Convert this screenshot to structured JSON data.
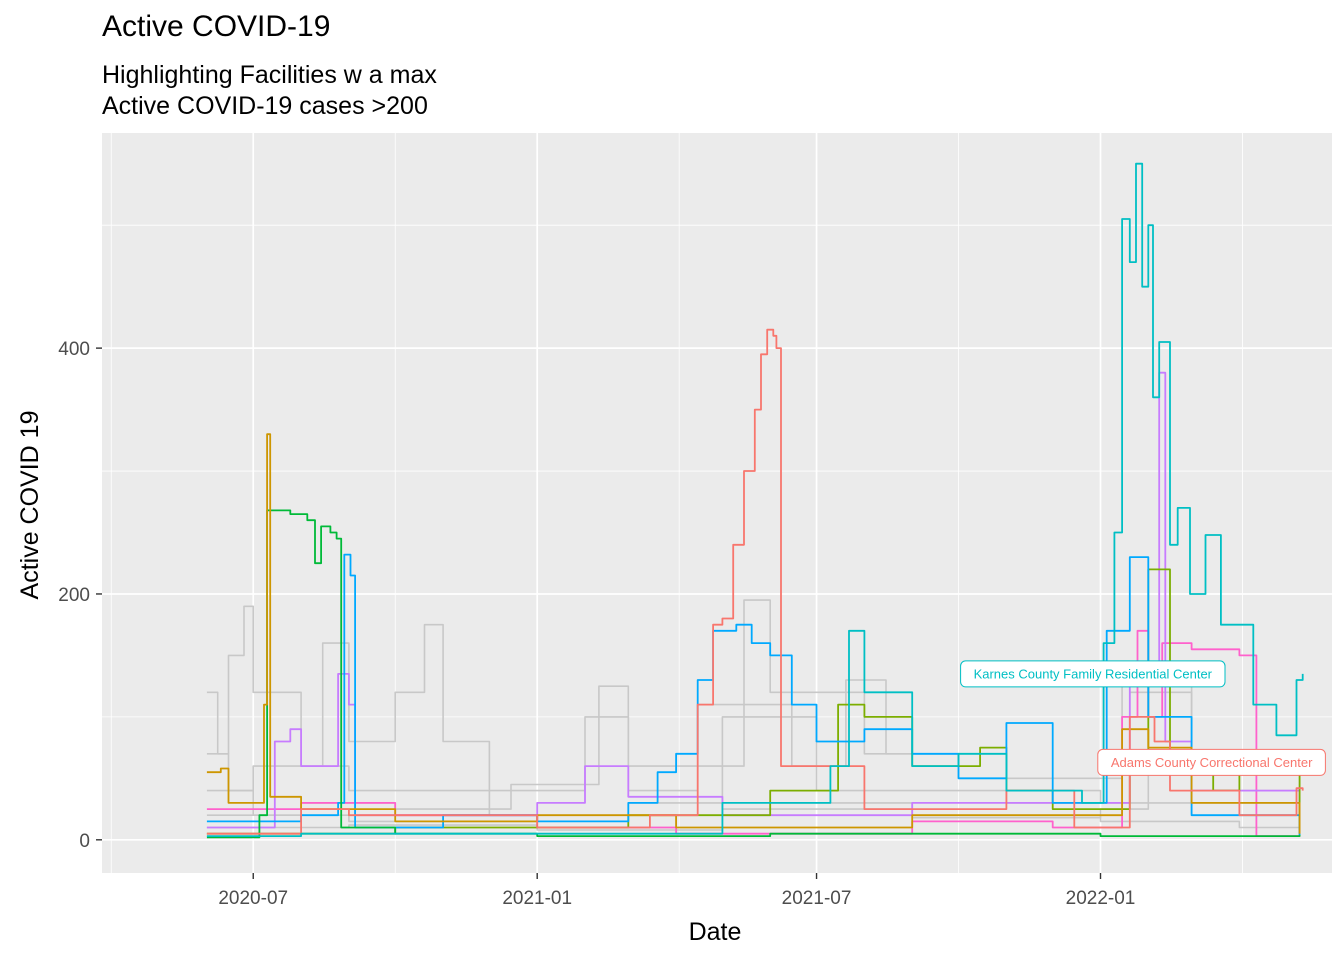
{
  "chart_data": {
    "type": "line",
    "title": "Active COVID-19",
    "subtitle_lines": [
      "Highlighting Facilities w a max",
      "Active COVID-19 cases >200"
    ],
    "xlabel": "Date",
    "ylabel": "Active COVID 19",
    "x_ticks": [
      "2020-07",
      "2021-01",
      "2021-07",
      "2022-01"
    ],
    "y_ticks": [
      0,
      200,
      400
    ],
    "xlim": [
      "2020-03-25",
      "2022-05-31"
    ],
    "ylim": [
      -27,
      575
    ],
    "grid": true,
    "background_color": "#EBEBEB",
    "background_series_color": "#C8C8C8",
    "background_series": [
      {
        "points": [
          [
            "2020-06-01",
            120
          ],
          [
            "2020-06-08",
            70
          ],
          [
            "2020-06-15",
            40
          ],
          [
            "2020-07-01",
            20
          ],
          [
            "2020-09-01",
            15
          ],
          [
            "2021-01-01",
            10
          ],
          [
            "2021-04-01",
            20
          ],
          [
            "2021-06-01",
            30
          ],
          [
            "2021-09-01",
            20
          ],
          [
            "2022-01-01",
            15
          ],
          [
            "2022-04-01",
            10
          ],
          [
            "2022-05-10",
            5
          ]
        ]
      },
      {
        "points": [
          [
            "2020-06-01",
            70
          ],
          [
            "2020-06-15",
            150
          ],
          [
            "2020-06-25",
            190
          ],
          [
            "2020-07-01",
            120
          ],
          [
            "2020-08-01",
            60
          ],
          [
            "2020-09-01",
            40
          ],
          [
            "2020-12-01",
            20
          ],
          [
            "2021-03-01",
            30
          ],
          [
            "2021-05-01",
            100
          ],
          [
            "2021-07-01",
            40
          ],
          [
            "2022-01-01",
            30
          ],
          [
            "2022-03-01",
            20
          ],
          [
            "2022-05-10",
            8
          ]
        ]
      },
      {
        "points": [
          [
            "2020-06-01",
            40
          ],
          [
            "2020-07-01",
            60
          ],
          [
            "2020-08-15",
            160
          ],
          [
            "2020-09-01",
            80
          ],
          [
            "2020-10-01",
            120
          ],
          [
            "2020-10-20",
            175
          ],
          [
            "2020-11-01",
            80
          ],
          [
            "2020-12-01",
            40
          ],
          [
            "2021-02-01",
            100
          ],
          [
            "2021-03-01",
            60
          ],
          [
            "2021-05-15",
            195
          ],
          [
            "2021-06-01",
            120
          ],
          [
            "2021-08-01",
            70
          ],
          [
            "2021-10-01",
            50
          ],
          [
            "2022-01-15",
            130
          ],
          [
            "2022-03-01",
            40
          ],
          [
            "2022-05-10",
            15
          ]
        ]
      },
      {
        "points": [
          [
            "2020-06-01",
            20
          ],
          [
            "2020-08-01",
            30
          ],
          [
            "2020-10-01",
            25
          ],
          [
            "2020-12-15",
            45
          ],
          [
            "2021-02-10",
            125
          ],
          [
            "2021-03-01",
            40
          ],
          [
            "2021-04-15",
            110
          ],
          [
            "2021-06-15",
            60
          ],
          [
            "2021-07-20",
            130
          ],
          [
            "2021-08-15",
            70
          ],
          [
            "2021-11-01",
            30
          ],
          [
            "2022-01-20",
            120
          ],
          [
            "2022-03-01",
            30
          ],
          [
            "2022-05-10",
            10
          ]
        ]
      },
      {
        "points": [
          [
            "2020-06-01",
            10
          ],
          [
            "2020-09-01",
            12
          ],
          [
            "2021-01-01",
            8
          ],
          [
            "2021-05-01",
            25
          ],
          [
            "2021-09-01",
            18
          ],
          [
            "2022-01-01",
            25
          ],
          [
            "2022-02-01",
            60
          ],
          [
            "2022-05-10",
            6
          ]
        ]
      }
    ],
    "series": [
      {
        "name": "Karnes County Family Residential Center",
        "color": "#00BFC4",
        "points": [
          [
            "2020-06-01",
            3
          ],
          [
            "2020-08-01",
            5
          ],
          [
            "2021-01-01",
            5
          ],
          [
            "2021-05-01",
            30
          ],
          [
            "2021-07-10",
            60
          ],
          [
            "2021-07-22",
            170
          ],
          [
            "2021-08-01",
            120
          ],
          [
            "2021-09-01",
            60
          ],
          [
            "2021-10-01",
            70
          ],
          [
            "2021-11-01",
            40
          ],
          [
            "2021-12-20",
            30
          ],
          [
            "2022-01-03",
            160
          ],
          [
            "2022-01-10",
            250
          ],
          [
            "2022-01-15",
            505
          ],
          [
            "2022-01-20",
            470
          ],
          [
            "2022-01-24",
            550
          ],
          [
            "2022-01-28",
            450
          ],
          [
            "2022-02-01",
            500
          ],
          [
            "2022-02-04",
            360
          ],
          [
            "2022-02-08",
            405
          ],
          [
            "2022-02-15",
            240
          ],
          [
            "2022-02-20",
            270
          ],
          [
            "2022-02-28",
            200
          ],
          [
            "2022-03-10",
            248
          ],
          [
            "2022-03-20",
            175
          ],
          [
            "2022-04-10",
            110
          ],
          [
            "2022-04-25",
            85
          ],
          [
            "2022-05-08",
            130
          ],
          [
            "2022-05-12",
            135
          ]
        ]
      },
      {
        "name": "Adams County Correctional Center",
        "color": "#F8766D",
        "points": [
          [
            "2020-06-01",
            5
          ],
          [
            "2020-08-01",
            25
          ],
          [
            "2020-09-01",
            20
          ],
          [
            "2021-01-01",
            10
          ],
          [
            "2021-03-15",
            20
          ],
          [
            "2021-04-15",
            110
          ],
          [
            "2021-04-25",
            175
          ],
          [
            "2021-05-01",
            180
          ],
          [
            "2021-05-08",
            240
          ],
          [
            "2021-05-15",
            300
          ],
          [
            "2021-05-22",
            350
          ],
          [
            "2021-05-26",
            395
          ],
          [
            "2021-05-30",
            415
          ],
          [
            "2021-06-03",
            410
          ],
          [
            "2021-06-05",
            400
          ],
          [
            "2021-06-08",
            60
          ],
          [
            "2021-08-01",
            25
          ],
          [
            "2021-11-01",
            40
          ],
          [
            "2021-12-15",
            10
          ],
          [
            "2022-01-20",
            100
          ],
          [
            "2022-02-05",
            80
          ],
          [
            "2022-02-15",
            40
          ],
          [
            "2022-04-01",
            20
          ],
          [
            "2022-05-08",
            42
          ],
          [
            "2022-05-12",
            40
          ]
        ]
      },
      {
        "name": "",
        "color": "#CD9600",
        "points": [
          [
            "2020-06-01",
            55
          ],
          [
            "2020-06-10",
            58
          ],
          [
            "2020-06-15",
            30
          ],
          [
            "2020-07-08",
            110
          ],
          [
            "2020-07-10",
            330
          ],
          [
            "2020-07-12",
            35
          ],
          [
            "2020-08-01",
            25
          ],
          [
            "2020-10-01",
            15
          ],
          [
            "2021-01-01",
            20
          ],
          [
            "2021-04-01",
            10
          ],
          [
            "2021-09-01",
            20
          ],
          [
            "2022-01-15",
            90
          ],
          [
            "2022-02-01",
            75
          ],
          [
            "2022-03-01",
            30
          ],
          [
            "2022-05-10",
            5
          ]
        ]
      },
      {
        "name": "",
        "color": "#00BA38",
        "points": [
          [
            "2020-06-01",
            2
          ],
          [
            "2020-07-05",
            20
          ],
          [
            "2020-07-10",
            268
          ],
          [
            "2020-07-25",
            265
          ],
          [
            "2020-08-05",
            260
          ],
          [
            "2020-08-10",
            225
          ],
          [
            "2020-08-14",
            255
          ],
          [
            "2020-08-20",
            250
          ],
          [
            "2020-08-24",
            245
          ],
          [
            "2020-08-27",
            10
          ],
          [
            "2020-10-01",
            5
          ],
          [
            "2021-01-01",
            3
          ],
          [
            "2021-06-01",
            5
          ],
          [
            "2022-01-01",
            3
          ],
          [
            "2022-05-10",
            4
          ]
        ]
      },
      {
        "name": "",
        "color": "#00A9FF",
        "points": [
          [
            "2020-06-01",
            15
          ],
          [
            "2020-08-01",
            20
          ],
          [
            "2020-08-25",
            30
          ],
          [
            "2020-08-29",
            232
          ],
          [
            "2020-09-02",
            215
          ],
          [
            "2020-09-05",
            10
          ],
          [
            "2020-11-01",
            20
          ],
          [
            "2021-01-01",
            15
          ],
          [
            "2021-03-01",
            30
          ],
          [
            "2021-03-20",
            55
          ],
          [
            "2021-04-01",
            70
          ],
          [
            "2021-04-15",
            130
          ],
          [
            "2021-04-25",
            170
          ],
          [
            "2021-05-10",
            175
          ],
          [
            "2021-05-20",
            160
          ],
          [
            "2021-06-01",
            150
          ],
          [
            "2021-06-15",
            110
          ],
          [
            "2021-07-01",
            80
          ],
          [
            "2021-08-01",
            90
          ],
          [
            "2021-09-01",
            70
          ],
          [
            "2021-10-01",
            50
          ],
          [
            "2021-11-01",
            95
          ],
          [
            "2021-12-01",
            30
          ],
          [
            "2022-01-05",
            170
          ],
          [
            "2022-01-20",
            230
          ],
          [
            "2022-02-01",
            100
          ],
          [
            "2022-03-01",
            20
          ],
          [
            "2022-05-10",
            3
          ]
        ]
      },
      {
        "name": "",
        "color": "#7CAE00",
        "points": [
          [
            "2020-06-01",
            5
          ],
          [
            "2020-10-01",
            10
          ],
          [
            "2021-03-01",
            20
          ],
          [
            "2021-06-01",
            40
          ],
          [
            "2021-07-15",
            110
          ],
          [
            "2021-08-01",
            100
          ],
          [
            "2021-09-01",
            60
          ],
          [
            "2021-10-15",
            75
          ],
          [
            "2021-11-01",
            40
          ],
          [
            "2021-12-01",
            25
          ],
          [
            "2022-01-20",
            60
          ],
          [
            "2022-02-01",
            220
          ],
          [
            "2022-02-15",
            60
          ],
          [
            "2022-03-15",
            40
          ],
          [
            "2022-04-01",
            60
          ],
          [
            "2022-05-10",
            5
          ]
        ]
      },
      {
        "name": "",
        "color": "#C77CFF",
        "points": [
          [
            "2020-06-01",
            10
          ],
          [
            "2020-07-15",
            80
          ],
          [
            "2020-07-25",
            90
          ],
          [
            "2020-08-01",
            60
          ],
          [
            "2020-08-25",
            135
          ],
          [
            "2020-09-01",
            110
          ],
          [
            "2020-09-05",
            20
          ],
          [
            "2020-12-01",
            20
          ],
          [
            "2021-01-01",
            30
          ],
          [
            "2021-02-01",
            60
          ],
          [
            "2021-03-01",
            35
          ],
          [
            "2021-05-01",
            20
          ],
          [
            "2021-09-01",
            30
          ],
          [
            "2022-01-20",
            140
          ],
          [
            "2022-02-08",
            380
          ],
          [
            "2022-02-12",
            80
          ],
          [
            "2022-03-01",
            40
          ],
          [
            "2022-05-10",
            5
          ]
        ]
      },
      {
        "name": "",
        "color": "#FF61CC",
        "points": [
          [
            "2020-06-01",
            25
          ],
          [
            "2020-08-01",
            30
          ],
          [
            "2020-10-01",
            20
          ],
          [
            "2021-01-01",
            10
          ],
          [
            "2021-04-01",
            5
          ],
          [
            "2021-09-01",
            15
          ],
          [
            "2021-12-01",
            10
          ],
          [
            "2022-01-15",
            100
          ],
          [
            "2022-01-25",
            170
          ],
          [
            "2022-02-01",
            100
          ],
          [
            "2022-02-10",
            160
          ],
          [
            "2022-03-01",
            155
          ],
          [
            "2022-04-01",
            150
          ],
          [
            "2022-04-10",
            150
          ],
          [
            "2022-04-12",
            3
          ],
          [
            "2022-05-10",
            10
          ]
        ]
      }
    ],
    "annotations": [
      {
        "text": "Karnes County Family Residential Center",
        "color": "#00BFC4",
        "date": "2021-12-27",
        "value": 135
      },
      {
        "text": "Adams County Correctional Center",
        "color": "#F8766D",
        "date": "2022-03-14",
        "value": 63
      }
    ]
  }
}
